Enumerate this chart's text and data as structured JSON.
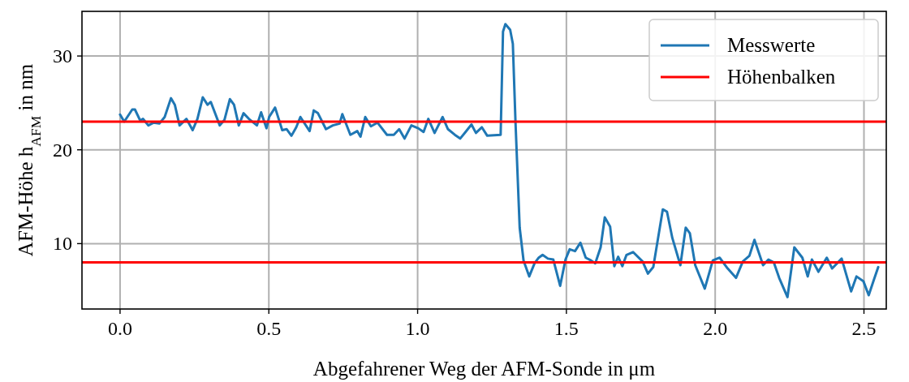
{
  "chart_data": {
    "type": "line",
    "xlabel": "Abgefahrener Weg der AFM-Sonde in μm",
    "ylabel": "AFM-Höhe h$_{AFM}$ in nm",
    "xlim": [
      -0.128,
      2.575
    ],
    "ylim": [
      3.03,
      34.76
    ],
    "xticks": [
      {
        "value": 0,
        "label": "0.0"
      },
      {
        "value": 0.5,
        "label": "0.5"
      },
      {
        "value": 1,
        "label": "1.0"
      },
      {
        "value": 1.5,
        "label": "1.5"
      },
      {
        "value": 2,
        "label": "2.0"
      },
      {
        "value": 2.5,
        "label": "2.5"
      }
    ],
    "yticks": [
      10,
      20,
      30
    ],
    "grid": true,
    "legend": "top right",
    "line_style": "solid",
    "marker": "none",
    "series": [
      {
        "name": "Messwerte",
        "color": "#1f77b4",
        "x": [
          0,
          0.014,
          0.041,
          0.05,
          0.068,
          0.077,
          0.095,
          0.113,
          0.132,
          0.15,
          0.171,
          0.184,
          0.2,
          0.223,
          0.244,
          0.26,
          0.278,
          0.294,
          0.305,
          0.335,
          0.351,
          0.369,
          0.383,
          0.399,
          0.415,
          0.433,
          0.46,
          0.474,
          0.492,
          0.501,
          0.521,
          0.545,
          0.56,
          0.576,
          0.592,
          0.606,
          0.637,
          0.651,
          0.665,
          0.692,
          0.715,
          0.738,
          0.747,
          0.774,
          0.797,
          0.808,
          0.824,
          0.843,
          0.865,
          0.897,
          0.92,
          0.938,
          0.956,
          0.979,
          1.002,
          1.02,
          1.036,
          1.057,
          1.084,
          1.102,
          1.125,
          1.143,
          1.161,
          1.181,
          1.196,
          1.216,
          1.234,
          1.279,
          1.287,
          1.295,
          1.311,
          1.32,
          1.329,
          1.343,
          1.356,
          1.375,
          1.393,
          1.407,
          1.42,
          1.438,
          1.456,
          1.479,
          1.497,
          1.511,
          1.529,
          1.547,
          1.565,
          1.583,
          1.597,
          1.615,
          1.629,
          1.647,
          1.661,
          1.674,
          1.688,
          1.702,
          1.724,
          1.756,
          1.774,
          1.792,
          1.824,
          1.838,
          1.856,
          1.883,
          1.901,
          1.915,
          1.933,
          1.965,
          1.992,
          2.015,
          2.042,
          2.07,
          2.093,
          2.115,
          2.132,
          2.161,
          2.179,
          2.197,
          2.215,
          2.243,
          2.266,
          2.293,
          2.311,
          2.325,
          2.347,
          2.375,
          2.393,
          2.425,
          2.457,
          2.475,
          2.498,
          2.516,
          2.534,
          2.548
        ],
        "values": [
          23.75,
          23.0,
          24.3,
          24.3,
          23.1,
          23.3,
          22.6,
          22.9,
          22.8,
          23.5,
          25.5,
          24.8,
          22.6,
          23.3,
          22.1,
          23.3,
          25.6,
          24.8,
          25.1,
          22.6,
          23.2,
          25.4,
          24.8,
          22.6,
          23.9,
          23.3,
          22.6,
          24.0,
          22.3,
          23.5,
          24.5,
          22.1,
          22.2,
          21.5,
          22.4,
          23.5,
          22.0,
          24.2,
          23.9,
          22.2,
          22.6,
          22.8,
          23.8,
          21.6,
          22.0,
          21.4,
          23.5,
          22.5,
          22.9,
          21.6,
          21.6,
          22.2,
          21.2,
          22.6,
          22.3,
          21.9,
          23.3,
          21.8,
          23.5,
          22.2,
          21.6,
          21.2,
          21.9,
          22.7,
          21.8,
          22.4,
          21.5,
          21.6,
          32.6,
          33.4,
          32.8,
          31.3,
          22.9,
          11.7,
          8.2,
          6.5,
          7.9,
          8.5,
          8.8,
          8.4,
          8.3,
          5.5,
          8.3,
          9.4,
          9.2,
          10.1,
          8.5,
          8.2,
          7.9,
          9.6,
          12.8,
          11.8,
          7.6,
          8.6,
          7.6,
          8.8,
          9.1,
          8.1,
          6.8,
          7.5,
          13.65,
          13.4,
          10.6,
          7.7,
          11.7,
          11.1,
          7.7,
          5.2,
          8.2,
          8.5,
          7.35,
          6.35,
          8.1,
          8.7,
          10.4,
          7.7,
          8.3,
          8.0,
          6.35,
          4.3,
          9.6,
          8.5,
          6.5,
          8.3,
          7.0,
          8.5,
          7.35,
          8.4,
          4.9,
          6.5,
          6.0,
          4.5,
          6.2,
          7.5
        ]
      }
    ],
    "ref_lines": [
      {
        "axis": "y",
        "value": 23,
        "label": "Höhenbalken",
        "color": "#ff0000"
      },
      {
        "axis": "y",
        "value": 8,
        "color": "#ff0000"
      }
    ]
  }
}
